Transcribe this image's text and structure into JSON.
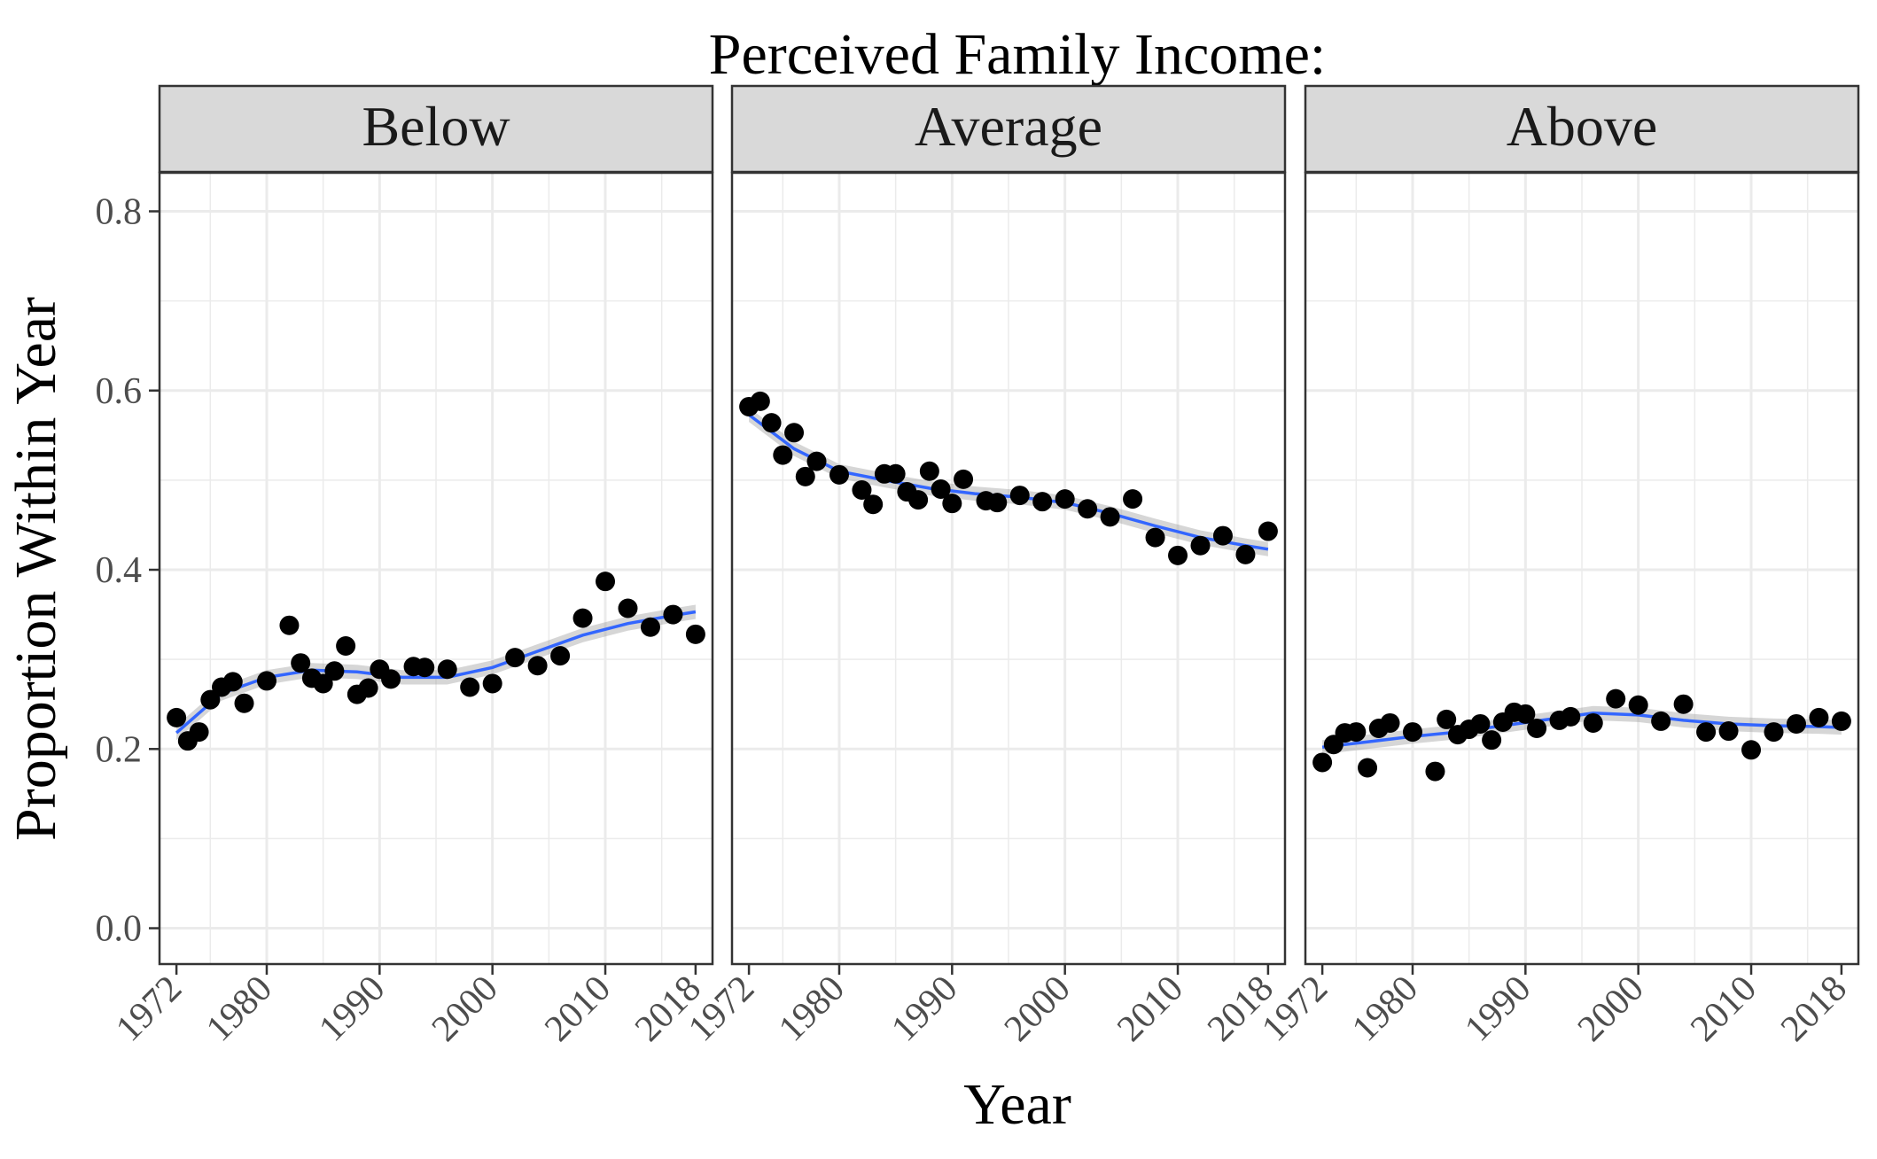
{
  "chart_data": {
    "type": "scatter",
    "title": "Perceived Family Income:",
    "xlabel": "Year",
    "ylabel": "Proportion Within Year",
    "xlim": [
      1970.5,
      2019.5
    ],
    "ylim": [
      -0.04,
      0.843
    ],
    "xticks": [
      1972,
      1980,
      1990,
      2000,
      2010,
      2018
    ],
    "yticks": [
      0.0,
      0.2,
      0.4,
      0.6,
      0.8
    ],
    "ytick_labels": [
      "0.0",
      "0.2",
      "0.4",
      "0.6",
      "0.8"
    ],
    "grid": true,
    "smoother": "loess with confidence band",
    "colors": {
      "points": "#000000",
      "line": "#3366FF",
      "band": "#999999",
      "strip_fill": "#D9D9D9",
      "panel_border": "#333333",
      "grid": "#EBEBEB"
    },
    "panels": [
      {
        "label": "Below",
        "x": [
          1972,
          1973,
          1974,
          1975,
          1976,
          1977,
          1978,
          1980,
          1982,
          1983,
          1984,
          1985,
          1986,
          1987,
          1988,
          1989,
          1990,
          1991,
          1993,
          1994,
          1996,
          1998,
          2000,
          2002,
          2004,
          2006,
          2008,
          2010,
          2012,
          2014,
          2016,
          2018
        ],
        "y": [
          0.235,
          0.209,
          0.219,
          0.255,
          0.269,
          0.275,
          0.251,
          0.276,
          0.338,
          0.296,
          0.279,
          0.273,
          0.287,
          0.315,
          0.261,
          0.268,
          0.289,
          0.278,
          0.292,
          0.291,
          0.289,
          0.269,
          0.273,
          0.302,
          0.293,
          0.304,
          0.346,
          0.387,
          0.357,
          0.336,
          0.35,
          0.328
        ],
        "trend_x": [
          1972,
          1976,
          1980,
          1984,
          1988,
          1992,
          1996,
          2000,
          2004,
          2008,
          2012,
          2016,
          2018
        ],
        "trend_y": [
          0.218,
          0.262,
          0.28,
          0.288,
          0.286,
          0.28,
          0.28,
          0.291,
          0.309,
          0.327,
          0.34,
          0.349,
          0.353
        ]
      },
      {
        "label": "Average",
        "x": [
          1972,
          1973,
          1974,
          1975,
          1976,
          1977,
          1978,
          1980,
          1982,
          1983,
          1984,
          1985,
          1986,
          1987,
          1988,
          1989,
          1990,
          1991,
          1993,
          1994,
          1996,
          1998,
          2000,
          2002,
          2004,
          2006,
          2008,
          2010,
          2012,
          2014,
          2016,
          2018
        ],
        "y": [
          0.582,
          0.588,
          0.564,
          0.528,
          0.553,
          0.504,
          0.521,
          0.506,
          0.489,
          0.473,
          0.507,
          0.507,
          0.487,
          0.478,
          0.51,
          0.49,
          0.474,
          0.501,
          0.477,
          0.475,
          0.483,
          0.476,
          0.479,
          0.468,
          0.459,
          0.479,
          0.436,
          0.416,
          0.427,
          0.438,
          0.417,
          0.443
        ],
        "trend_x": [
          1972,
          1976,
          1980,
          1984,
          1988,
          1992,
          1996,
          2000,
          2004,
          2008,
          2012,
          2016,
          2018
        ],
        "trend_y": [
          0.573,
          0.535,
          0.51,
          0.5,
          0.491,
          0.485,
          0.481,
          0.475,
          0.463,
          0.449,
          0.436,
          0.427,
          0.423
        ]
      },
      {
        "label": "Above",
        "x": [
          1972,
          1973,
          1974,
          1975,
          1976,
          1977,
          1978,
          1980,
          1982,
          1983,
          1984,
          1985,
          1986,
          1987,
          1988,
          1989,
          1990,
          1991,
          1993,
          1994,
          1996,
          1998,
          2000,
          2002,
          2004,
          2006,
          2008,
          2010,
          2012,
          2014,
          2016,
          2018
        ],
        "y": [
          0.185,
          0.205,
          0.218,
          0.219,
          0.179,
          0.223,
          0.229,
          0.219,
          0.175,
          0.233,
          0.216,
          0.222,
          0.228,
          0.21,
          0.23,
          0.241,
          0.239,
          0.223,
          0.232,
          0.236,
          0.229,
          0.256,
          0.249,
          0.231,
          0.25,
          0.219,
          0.22,
          0.199,
          0.219,
          0.228,
          0.235,
          0.231
        ],
        "trend_x": [
          1972,
          1976,
          1980,
          1984,
          1988,
          1992,
          1996,
          2000,
          2004,
          2008,
          2012,
          2016,
          2018
        ],
        "trend_y": [
          0.202,
          0.208,
          0.214,
          0.219,
          0.226,
          0.233,
          0.24,
          0.238,
          0.232,
          0.228,
          0.226,
          0.225,
          0.224
        ]
      }
    ]
  }
}
